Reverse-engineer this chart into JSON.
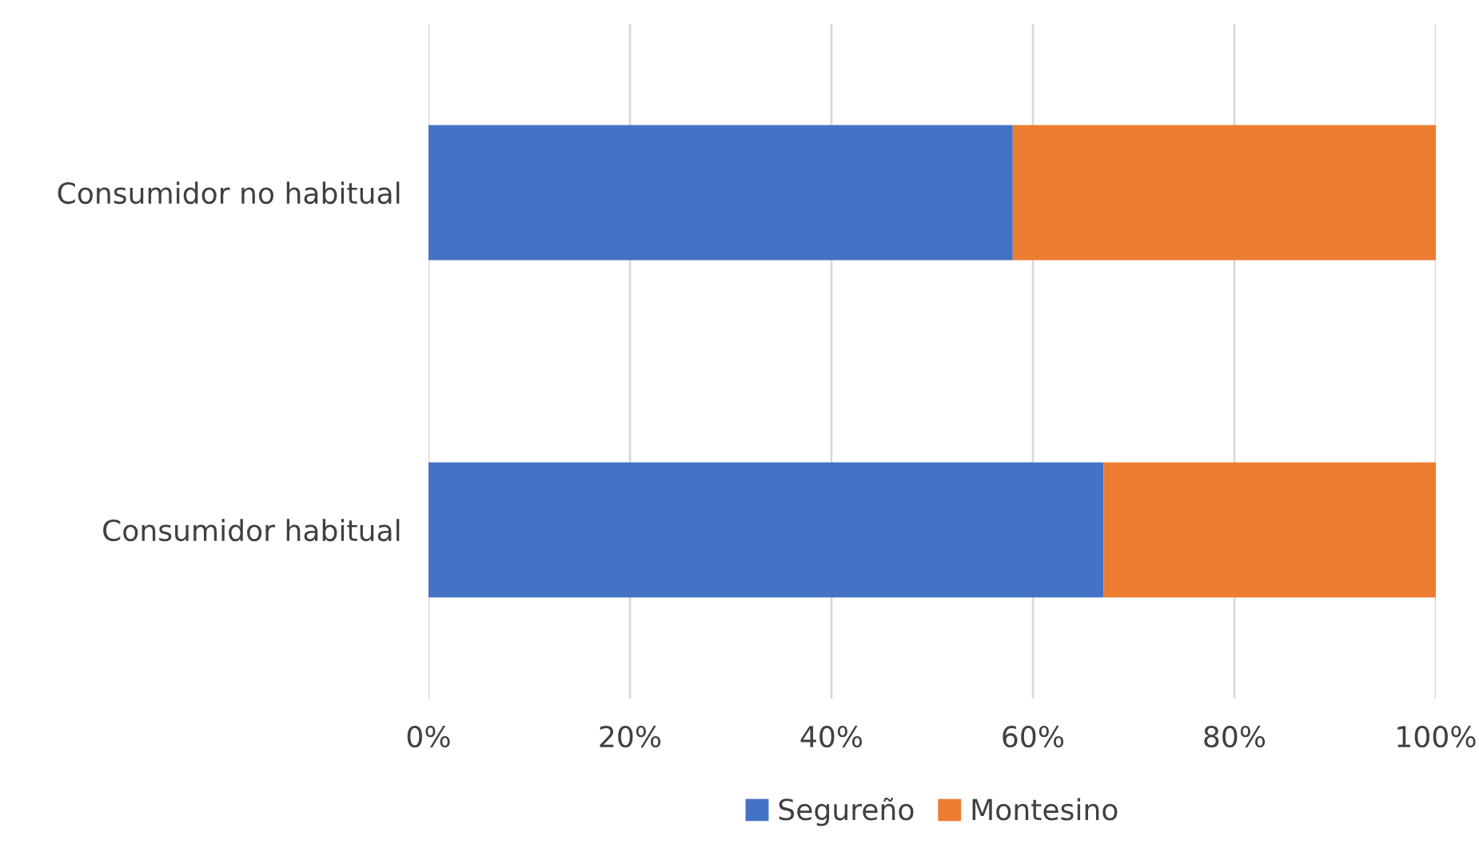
{
  "chart_data": {
    "type": "bar",
    "orientation": "horizontal",
    "stacked": true,
    "categories": [
      "Consumidor no habitual",
      "Consumidor habitual"
    ],
    "series": [
      {
        "name": "Segureño",
        "color": "#4472c4",
        "values": [
          58,
          67
        ]
      },
      {
        "name": "Montesino",
        "color": "#ed7d31",
        "values": [
          42,
          33
        ]
      }
    ],
    "xlim": [
      0,
      100
    ],
    "xticks": [
      {
        "value": 0,
        "label": "0%"
      },
      {
        "value": 20,
        "label": "20%"
      },
      {
        "value": 40,
        "label": "40%"
      },
      {
        "value": 60,
        "label": "60%"
      },
      {
        "value": 80,
        "label": "80%"
      },
      {
        "value": 100,
        "label": "100%"
      }
    ],
    "grid": "x",
    "legend": "bottom"
  }
}
